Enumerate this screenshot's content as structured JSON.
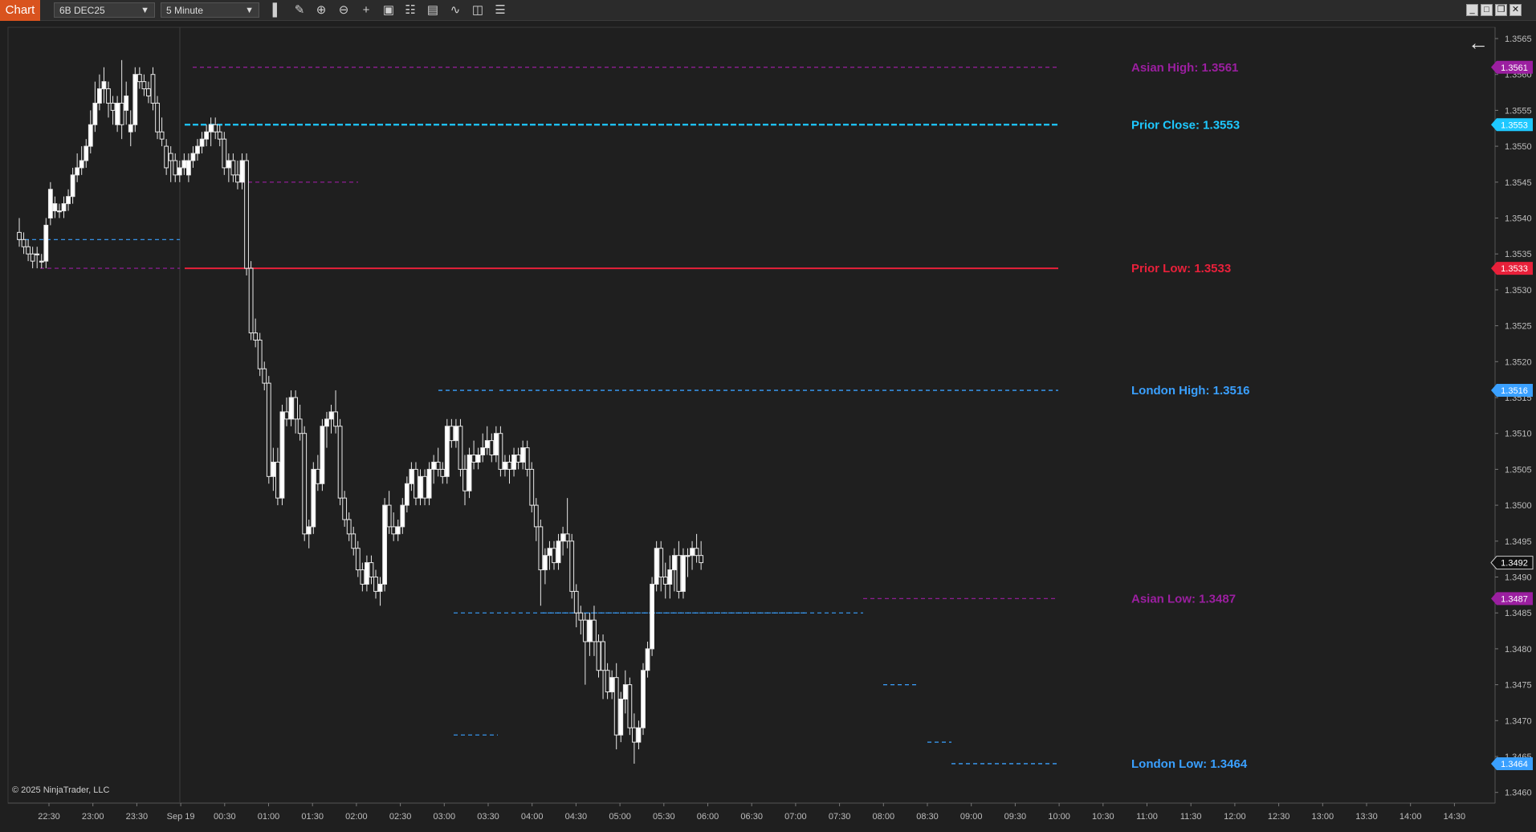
{
  "toolbar": {
    "tab_label": "Chart",
    "instrument": "6B DEC25",
    "interval": "5 Minute",
    "tools": [
      "bar-type-icon",
      "draw-pencil-icon",
      "zoom-in-icon",
      "zoom-out-icon",
      "crosshair-icon",
      "data-box-icon",
      "properties-icon",
      "chart-trader-icon",
      "strategies-icon",
      "indicators-icon",
      "list-icon"
    ],
    "window_buttons": [
      "window-minimize-icon",
      "window-tile-icon",
      "window-maximize-icon",
      "window-close-icon"
    ]
  },
  "chart_data": {
    "type": "candlestick",
    "instrument": "6B DEC25",
    "interval": "5 Minute",
    "ylim": [
      1.3455,
      1.3568
    ],
    "y_ticks": [
      "1.3565",
      "1.3560",
      "1.3555",
      "1.3550",
      "1.3545",
      "1.3540",
      "1.3535",
      "1.3530",
      "1.3525",
      "1.3520",
      "1.3515",
      "1.3510",
      "1.3505",
      "1.3500",
      "1.3495",
      "1.3490",
      "1.3485",
      "1.3480",
      "1.3475",
      "1.3470",
      "1.3465",
      "1.3460"
    ],
    "x_ticks": [
      "22:30",
      "23:00",
      "23:30",
      "Sep 19",
      "00:30",
      "01:00",
      "01:30",
      "02:00",
      "02:30",
      "03:00",
      "03:30",
      "04:00",
      "04:30",
      "05:00",
      "05:30",
      "06:00",
      "06:30",
      "07:00",
      "07:30",
      "08:00",
      "08:30",
      "09:00",
      "09:30",
      "10:00",
      "10:30",
      "11:00",
      "11:30",
      "12:00",
      "12:30",
      "13:00",
      "13:30",
      "14:00",
      "14:30"
    ],
    "levels": [
      {
        "label": "Asian High: 1.3561",
        "value": 1.3561,
        "color": "#9b1fa0",
        "tag": "1.3561"
      },
      {
        "label": "Prior Close: 1.3553",
        "value": 1.3553,
        "color": "#1ec8ff",
        "tag": "1.3553"
      },
      {
        "label": "Prior Low: 1.3533",
        "value": 1.3533,
        "color": "#e8203a",
        "tag": "1.3533"
      },
      {
        "label": "London High: 1.3516",
        "value": 1.3516,
        "color": "#3aa0ff",
        "tag": "1.3516"
      },
      {
        "label": "Asian Low: 1.3487",
        "value": 1.3487,
        "color": "#9b1fa0",
        "tag": "1.3487"
      },
      {
        "label": "London Low: 1.3464",
        "value": 1.3464,
        "color": "#3aa0ff",
        "tag": "1.3464"
      }
    ],
    "last_price": {
      "value": 1.3492,
      "tag": "1.3492"
    },
    "candles": [
      [
        1.3538,
        1.354,
        1.3536,
        1.3537
      ],
      [
        1.3537,
        1.3538,
        1.3535,
        1.3536
      ],
      [
        1.3536,
        1.3537,
        1.3534,
        1.3535
      ],
      [
        1.3535,
        1.3536,
        1.3533,
        1.3534
      ],
      [
        1.3535,
        1.3536,
        1.3533,
        1.3535
      ],
      [
        1.3534,
        1.3535,
        1.3533,
        1.3534
      ],
      [
        1.3534,
        1.354,
        1.3533,
        1.3539
      ],
      [
        1.354,
        1.3545,
        1.3539,
        1.3544
      ],
      [
        1.3541,
        1.3543,
        1.354,
        1.3542
      ],
      [
        1.3541,
        1.3542,
        1.354,
        1.3541
      ],
      [
        1.3541,
        1.3543,
        1.354,
        1.3542
      ],
      [
        1.3542,
        1.3544,
        1.3541,
        1.3543
      ],
      [
        1.3543,
        1.3547,
        1.3542,
        1.3546
      ],
      [
        1.3546,
        1.3549,
        1.3545,
        1.3547
      ],
      [
        1.3547,
        1.355,
        1.3546,
        1.3548
      ],
      [
        1.3548,
        1.3551,
        1.3547,
        1.355
      ],
      [
        1.355,
        1.3555,
        1.3549,
        1.3553
      ],
      [
        1.3553,
        1.3559,
        1.3552,
        1.3556
      ],
      [
        1.3556,
        1.356,
        1.3555,
        1.3558
      ],
      [
        1.3558,
        1.3561,
        1.3556,
        1.3559
      ],
      [
        1.3558,
        1.3559,
        1.3554,
        1.3556
      ],
      [
        1.3556,
        1.3557,
        1.3553,
        1.3555
      ],
      [
        1.3553,
        1.3557,
        1.3552,
        1.3556
      ],
      [
        1.3556,
        1.3562,
        1.3551,
        1.3553
      ],
      [
        1.3555,
        1.3559,
        1.3553,
        1.3557
      ],
      [
        1.3552,
        1.3555,
        1.355,
        1.3553
      ],
      [
        1.3553,
        1.3561,
        1.3552,
        1.356
      ],
      [
        1.356,
        1.3561,
        1.3558,
        1.3559
      ],
      [
        1.3559,
        1.356,
        1.3557,
        1.3558
      ],
      [
        1.3558,
        1.3559,
        1.3556,
        1.3557
      ],
      [
        1.356,
        1.3561,
        1.3555,
        1.3556
      ],
      [
        1.3556,
        1.3557,
        1.3551,
        1.3552
      ],
      [
        1.3552,
        1.3554,
        1.355,
        1.3551
      ],
      [
        1.355,
        1.3551,
        1.3546,
        1.3547
      ],
      [
        1.3549,
        1.355,
        1.3545,
        1.3548
      ],
      [
        1.3548,
        1.3549,
        1.3545,
        1.3546
      ],
      [
        1.3546,
        1.3548,
        1.3545,
        1.3547
      ],
      [
        1.3547,
        1.3549,
        1.3546,
        1.3548
      ],
      [
        1.3546,
        1.3549,
        1.3545,
        1.3548
      ],
      [
        1.3548,
        1.355,
        1.3547,
        1.3549
      ],
      [
        1.3549,
        1.3551,
        1.3548,
        1.355
      ],
      [
        1.355,
        1.3552,
        1.3549,
        1.3551
      ],
      [
        1.3551,
        1.3553,
        1.355,
        1.3552
      ],
      [
        1.3552,
        1.3554,
        1.355,
        1.3553
      ],
      [
        1.3553,
        1.3554,
        1.3551,
        1.3552
      ],
      [
        1.3552,
        1.3553,
        1.355,
        1.3551
      ],
      [
        1.3551,
        1.3552,
        1.3546,
        1.3547
      ],
      [
        1.3547,
        1.3549,
        1.3545,
        1.3548
      ],
      [
        1.3548,
        1.3549,
        1.3545,
        1.3546
      ],
      [
        1.3546,
        1.3548,
        1.3544,
        1.3545
      ],
      [
        1.3545,
        1.3549,
        1.3544,
        1.3548
      ],
      [
        1.3548,
        1.3549,
        1.3532,
        1.3533
      ],
      [
        1.3533,
        1.3534,
        1.3523,
        1.3524
      ],
      [
        1.3524,
        1.3526,
        1.3522,
        1.3523
      ],
      [
        1.3523,
        1.3524,
        1.3518,
        1.3519
      ],
      [
        1.3519,
        1.352,
        1.3516,
        1.3517
      ],
      [
        1.3517,
        1.3518,
        1.3503,
        1.3504
      ],
      [
        1.3504,
        1.3508,
        1.3502,
        1.3506
      ],
      [
        1.3506,
        1.3508,
        1.35,
        1.3501
      ],
      [
        1.3501,
        1.3514,
        1.35,
        1.3513
      ],
      [
        1.3513,
        1.3515,
        1.3511,
        1.3512
      ],
      [
        1.3512,
        1.3516,
        1.3511,
        1.3515
      ],
      [
        1.3515,
        1.3516,
        1.351,
        1.3512
      ],
      [
        1.3512,
        1.3514,
        1.3509,
        1.351
      ],
      [
        1.351,
        1.3511,
        1.3495,
        1.3496
      ],
      [
        1.3496,
        1.3498,
        1.3494,
        1.3497
      ],
      [
        1.3497,
        1.3506,
        1.3496,
        1.3505
      ],
      [
        1.3505,
        1.3507,
        1.3502,
        1.3503
      ],
      [
        1.3503,
        1.3512,
        1.3502,
        1.3511
      ],
      [
        1.3511,
        1.3513,
        1.3508,
        1.3512
      ],
      [
        1.3512,
        1.3514,
        1.351,
        1.3513
      ],
      [
        1.3513,
        1.3516,
        1.351,
        1.3511
      ],
      [
        1.3511,
        1.3512,
        1.35,
        1.3501
      ],
      [
        1.3501,
        1.3502,
        1.3497,
        1.3498
      ],
      [
        1.3498,
        1.3499,
        1.3495,
        1.3496
      ],
      [
        1.3496,
        1.3497,
        1.3493,
        1.3494
      ],
      [
        1.3494,
        1.3495,
        1.349,
        1.3491
      ],
      [
        1.3491,
        1.3492,
        1.3488,
        1.3489
      ],
      [
        1.3489,
        1.3493,
        1.3488,
        1.3492
      ],
      [
        1.3492,
        1.3493,
        1.3489,
        1.349
      ],
      [
        1.349,
        1.3491,
        1.3487,
        1.3488
      ],
      [
        1.3488,
        1.349,
        1.3486,
        1.3489
      ],
      [
        1.3489,
        1.3501,
        1.3488,
        1.35
      ],
      [
        1.35,
        1.3502,
        1.3496,
        1.3497
      ],
      [
        1.3497,
        1.3499,
        1.3495,
        1.3496
      ],
      [
        1.3496,
        1.3498,
        1.3495,
        1.3497
      ],
      [
        1.3497,
        1.3501,
        1.3496,
        1.35
      ],
      [
        1.35,
        1.3504,
        1.3499,
        1.3503
      ],
      [
        1.3503,
        1.3506,
        1.3502,
        1.3505
      ],
      [
        1.3505,
        1.3506,
        1.35,
        1.3501
      ],
      [
        1.3501,
        1.3505,
        1.35,
        1.3504
      ],
      [
        1.3504,
        1.3505,
        1.35,
        1.3501
      ],
      [
        1.3501,
        1.3506,
        1.35,
        1.3505
      ],
      [
        1.3505,
        1.3507,
        1.3503,
        1.3506
      ],
      [
        1.3506,
        1.3508,
        1.3504,
        1.3505
      ],
      [
        1.3505,
        1.3506,
        1.3503,
        1.3504
      ],
      [
        1.3504,
        1.3512,
        1.3503,
        1.3511
      ],
      [
        1.3511,
        1.3512,
        1.3508,
        1.3509
      ],
      [
        1.3509,
        1.3512,
        1.3508,
        1.3511
      ],
      [
        1.3511,
        1.3512,
        1.3504,
        1.3505
      ],
      [
        1.3505,
        1.3507,
        1.35,
        1.3502
      ],
      [
        1.3502,
        1.3508,
        1.3501,
        1.3507
      ],
      [
        1.3507,
        1.3509,
        1.3505,
        1.3506
      ],
      [
        1.3506,
        1.3508,
        1.3505,
        1.3507
      ],
      [
        1.3507,
        1.351,
        1.3506,
        1.3508
      ],
      [
        1.3508,
        1.3511,
        1.3507,
        1.3509
      ],
      [
        1.3509,
        1.351,
        1.3506,
        1.3507
      ],
      [
        1.3507,
        1.3511,
        1.3506,
        1.351
      ],
      [
        1.351,
        1.3511,
        1.3504,
        1.3505
      ],
      [
        1.3505,
        1.3507,
        1.3504,
        1.3506
      ],
      [
        1.3506,
        1.3507,
        1.3503,
        1.3505
      ],
      [
        1.3505,
        1.3508,
        1.3504,
        1.3507
      ],
      [
        1.3507,
        1.3508,
        1.3505,
        1.3506
      ],
      [
        1.3506,
        1.3509,
        1.3505,
        1.3508
      ],
      [
        1.3508,
        1.3509,
        1.3504,
        1.3505
      ],
      [
        1.3505,
        1.3506,
        1.3499,
        1.35
      ],
      [
        1.35,
        1.3501,
        1.3495,
        1.3497
      ],
      [
        1.3497,
        1.3498,
        1.3486,
        1.3491
      ],
      [
        1.3491,
        1.3494,
        1.3489,
        1.3493
      ],
      [
        1.3493,
        1.3495,
        1.3491,
        1.3494
      ],
      [
        1.3494,
        1.3495,
        1.3491,
        1.3492
      ],
      [
        1.3492,
        1.3496,
        1.3491,
        1.3495
      ],
      [
        1.3495,
        1.3497,
        1.3493,
        1.3496
      ],
      [
        1.3496,
        1.3501,
        1.3494,
        1.3495
      ],
      [
        1.3495,
        1.3496,
        1.3487,
        1.3488
      ],
      [
        1.3488,
        1.3489,
        1.3483,
        1.3485
      ],
      [
        1.3485,
        1.3486,
        1.3482,
        1.3484
      ],
      [
        1.3484,
        1.3485,
        1.3475,
        1.3481
      ],
      [
        1.3481,
        1.3485,
        1.3479,
        1.3484
      ],
      [
        1.3484,
        1.3486,
        1.3479,
        1.3481
      ],
      [
        1.3481,
        1.3482,
        1.3476,
        1.3477
      ],
      [
        1.3481,
        1.3482,
        1.3473,
        1.3477
      ],
      [
        1.3477,
        1.3478,
        1.3473,
        1.3474
      ],
      [
        1.3474,
        1.3477,
        1.3473,
        1.3476
      ],
      [
        1.3476,
        1.3478,
        1.3466,
        1.3468
      ],
      [
        1.3468,
        1.3474,
        1.3467,
        1.3473
      ],
      [
        1.3473,
        1.3477,
        1.3471,
        1.3475
      ],
      [
        1.3475,
        1.3476,
        1.3468,
        1.3469
      ],
      [
        1.3469,
        1.3471,
        1.3464,
        1.3467
      ],
      [
        1.3467,
        1.347,
        1.3466,
        1.3469
      ],
      [
        1.3469,
        1.3478,
        1.3468,
        1.3477
      ],
      [
        1.3477,
        1.3481,
        1.3476,
        1.348
      ],
      [
        1.348,
        1.349,
        1.3479,
        1.3489
      ],
      [
        1.3489,
        1.3495,
        1.3488,
        1.3494
      ],
      [
        1.3494,
        1.3495,
        1.3488,
        1.349
      ],
      [
        1.349,
        1.3492,
        1.3487,
        1.3489
      ],
      [
        1.3489,
        1.3493,
        1.3487,
        1.3491
      ],
      [
        1.3491,
        1.3494,
        1.3488,
        1.3493
      ],
      [
        1.3493,
        1.3495,
        1.3487,
        1.3488
      ],
      [
        1.3488,
        1.3494,
        1.3487,
        1.3493
      ],
      [
        1.3493,
        1.3494,
        1.349,
        1.3493
      ],
      [
        1.3493,
        1.3495,
        1.3491,
        1.3494
      ],
      [
        1.3494,
        1.3496,
        1.3492,
        1.3493
      ],
      [
        1.3493,
        1.3495,
        1.3491,
        1.3492
      ]
    ]
  },
  "copyright": "© 2025 NinjaTrader, LLC"
}
